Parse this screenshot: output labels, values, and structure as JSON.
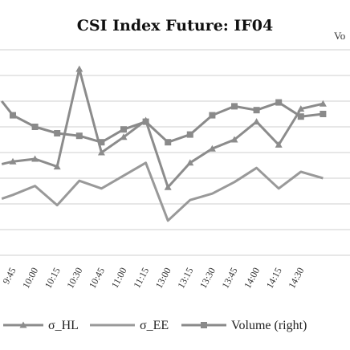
{
  "chart_data": {
    "type": "line",
    "title": "CSI Index Future: IF04",
    "y2label": "Vo",
    "categories": [
      "9:45",
      "10:00",
      "10:15",
      "10:30",
      "10:45",
      "11:00",
      "11:15",
      "13:00",
      "13:15",
      "13:30",
      "13:45",
      "14:00",
      "14:15",
      "14:30"
    ],
    "series": [
      {
        "name": "σ_HL",
        "marker": "triangle",
        "color": "#8c8c8c",
        "x": [
          -0.5,
          0,
          1,
          2,
          3,
          4,
          5,
          6,
          7,
          8,
          9,
          10,
          11,
          12,
          13,
          14
        ],
        "values": [
          3.55,
          3.65,
          3.75,
          3.45,
          7.25,
          4.0,
          4.6,
          5.25,
          2.65,
          3.6,
          4.15,
          4.5,
          5.2,
          4.3,
          5.7,
          5.9
        ]
      },
      {
        "name": "σ_EE",
        "marker": "none",
        "color": "#999999",
        "x": [
          -0.5,
          0,
          1,
          2,
          3,
          4,
          5,
          6,
          7,
          8,
          9,
          10,
          11,
          12,
          13,
          14
        ],
        "values": [
          2.2,
          2.35,
          2.7,
          1.95,
          2.9,
          2.6,
          3.1,
          3.6,
          1.35,
          2.15,
          2.4,
          2.85,
          3.4,
          2.6,
          3.25,
          3.0
        ]
      },
      {
        "name": "Volume (right)",
        "marker": "square",
        "color": "#8a8a8a",
        "x": [
          -0.5,
          0,
          1,
          2,
          3,
          4,
          5,
          6,
          7,
          8,
          9,
          10,
          11,
          12,
          13,
          14
        ],
        "values": [
          6.0,
          5.45,
          5.0,
          4.75,
          4.65,
          4.4,
          4.9,
          5.2,
          4.4,
          4.7,
          5.45,
          5.8,
          5.65,
          5.95,
          5.4,
          5.5
        ]
      }
    ],
    "ylim": [
      0,
      8
    ],
    "grid": true,
    "legend": "bottom"
  }
}
